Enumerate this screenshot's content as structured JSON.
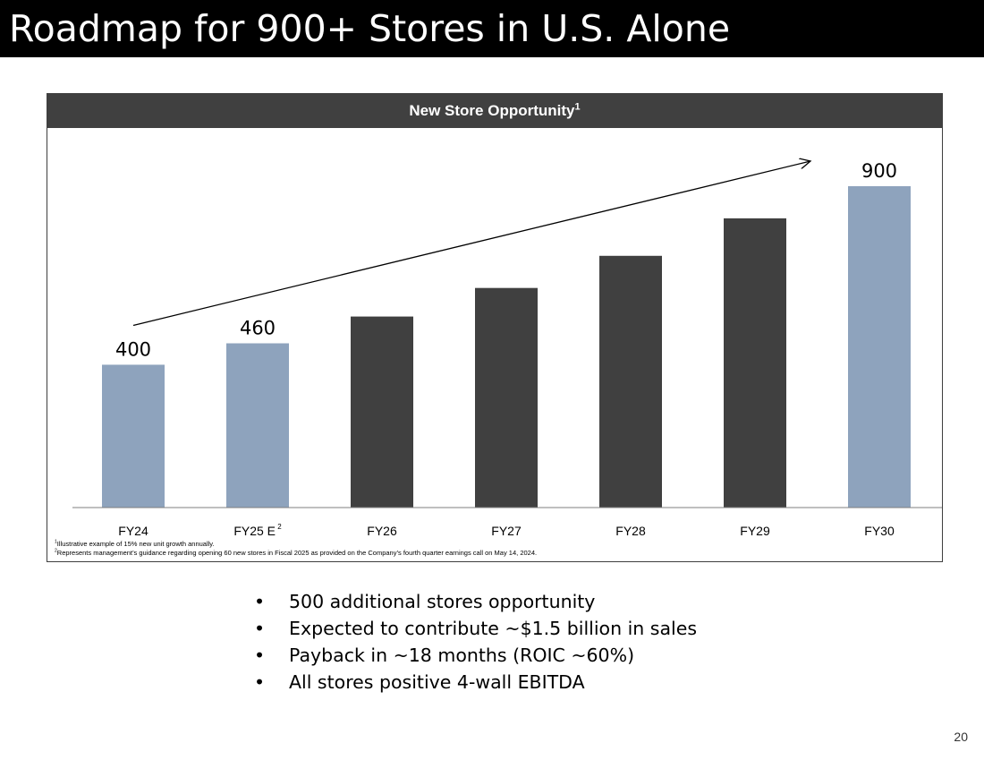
{
  "slide": {
    "title": "Roadmap for 900+ Stores in U.S. Alone",
    "page_number": "20"
  },
  "panel": {
    "header": "New Store Opportunity",
    "header_sup": "1"
  },
  "footnotes": [
    {
      "sup": "1",
      "text": "Illustrative example of 15% new unit growth annually."
    },
    {
      "sup": "2",
      "text": "Represents management’s guidance regarding opening 60 new stores in Fiscal 2025 as provided on the Company’s fourth quarter earnings call on May 14, 2024."
    }
  ],
  "bullets": [
    "500 additional stores opportunity",
    "Expected to contribute ~$1.5 billion in sales",
    "Payback in ~18 months (ROIC ~60%)",
    "All stores positive 4-wall EBITDA"
  ],
  "bullet_glyph": "•",
  "chart_data": {
    "type": "bar",
    "categories": [
      "FY24",
      "FY25 E",
      "FY26",
      "FY27",
      "FY28",
      "FY29",
      "FY30"
    ],
    "category_sups": [
      "",
      "2",
      "",
      "",
      "",
      "",
      ""
    ],
    "values": [
      400,
      460,
      535,
      615,
      705,
      810,
      900
    ],
    "data_labels": [
      "400",
      "460",
      "",
      "",
      "",
      "",
      "900"
    ],
    "bar_colors": [
      "#8ea3bd",
      "#8ea3bd",
      "#404040",
      "#404040",
      "#404040",
      "#404040",
      "#8ea3bd"
    ],
    "ylim": [
      0,
      900
    ],
    "trend_arrow": {
      "from_value": 400,
      "to_value": 900
    },
    "grid": false,
    "legend": "none"
  }
}
